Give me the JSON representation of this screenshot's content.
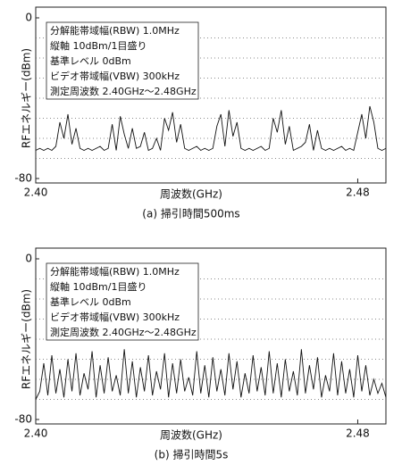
{
  "chart_data": [
    {
      "type": "line",
      "ylabel": "RFエネルギー(dBm)",
      "xlabel": "周波数(GHz)",
      "caption": "(a) 掃引時間500ms",
      "annotations": [
        "分解能帯域幅(RBW) 1.0MHz",
        "縦軸 10dBm/1目盛り",
        "基準レベル 0dBm",
        "ビデオ帯域幅(VBW) 300kHz",
        "測定周波数 2.40GHz〜2.48GHz"
      ],
      "x": [
        2.4,
        2.401,
        2.402,
        2.403,
        2.404,
        2.405,
        2.406,
        2.407,
        2.408,
        2.409,
        2.41,
        2.411,
        2.412,
        2.413,
        2.414,
        2.415,
        2.416,
        2.417,
        2.418,
        2.419,
        2.42,
        2.421,
        2.422,
        2.423,
        2.424,
        2.425,
        2.426,
        2.427,
        2.428,
        2.429,
        2.43,
        2.431,
        2.432,
        2.433,
        2.434,
        2.435,
        2.436,
        2.437,
        2.438,
        2.439,
        2.44,
        2.441,
        2.442,
        2.443,
        2.444,
        2.445,
        2.446,
        2.447,
        2.448,
        2.449,
        2.45,
        2.451,
        2.452,
        2.453,
        2.454,
        2.455,
        2.456,
        2.457,
        2.458,
        2.459,
        2.46,
        2.461,
        2.462,
        2.463,
        2.464,
        2.465,
        2.466,
        2.467,
        2.468,
        2.469,
        2.47,
        2.471,
        2.472,
        2.473,
        2.474,
        2.475,
        2.476,
        2.477,
        2.478,
        2.479,
        2.48,
        2.481,
        2.482,
        2.483,
        2.484,
        2.485,
        2.486,
        2.487
      ],
      "series": [
        {
          "color": "#111111",
          "values": [
            -66,
            -65,
            -66,
            -65,
            -66,
            -64,
            -52,
            -60,
            -48,
            -63,
            -55,
            -65,
            -66,
            -65,
            -66,
            -65,
            -64,
            -66,
            -65,
            -53,
            -66,
            -49,
            -58,
            -65,
            -55,
            -65,
            -64,
            -57,
            -66,
            -65,
            -60,
            -66,
            -50,
            -56,
            -47,
            -62,
            -53,
            -65,
            -66,
            -65,
            -64,
            -66,
            -65,
            -66,
            -65,
            -54,
            -48,
            -64,
            -46,
            -59,
            -52,
            -65,
            -66,
            -65,
            -66,
            -65,
            -64,
            -66,
            -65,
            -50,
            -57,
            -46,
            -63,
            -54,
            -66,
            -65,
            -64,
            -62,
            -53,
            -66,
            -56,
            -65,
            -66,
            -65,
            -66,
            -65,
            -64,
            -66,
            -65,
            -66,
            -57,
            -48,
            -60,
            -44,
            -52,
            -65,
            -66,
            -65
          ]
        }
      ],
      "xlim": [
        2.4,
        2.487
      ],
      "ylim": [
        -80,
        0
      ],
      "xticks": [
        {
          "value": 2.4,
          "label": "2.40"
        },
        2.48
      ],
      "yticks": [
        0,
        -80
      ],
      "ygrid": [
        -10,
        -20,
        -30,
        -40,
        -50,
        -60,
        -70
      ]
    },
    {
      "type": "line",
      "ylabel": "RFエネルギー(dBm)",
      "xlabel": "周波数(GHz)",
      "caption": "(b) 掃引時間5s",
      "annotations": [
        "分解能帯域幅(RBW) 1.0MHz",
        "縦軸 10dBm/1目盛り",
        "基準レベル 0dBm",
        "ビデオ帯域幅(VBW) 300kHz",
        "測定周波数 2.40GHz〜2.48GHz"
      ],
      "x": [
        2.4,
        2.401,
        2.402,
        2.403,
        2.404,
        2.405,
        2.406,
        2.407,
        2.408,
        2.409,
        2.41,
        2.411,
        2.412,
        2.413,
        2.414,
        2.415,
        2.416,
        2.417,
        2.418,
        2.419,
        2.42,
        2.421,
        2.422,
        2.423,
        2.424,
        2.425,
        2.426,
        2.427,
        2.428,
        2.429,
        2.43,
        2.431,
        2.432,
        2.433,
        2.434,
        2.435,
        2.436,
        2.437,
        2.438,
        2.439,
        2.44,
        2.441,
        2.442,
        2.443,
        2.444,
        2.445,
        2.446,
        2.447,
        2.448,
        2.449,
        2.45,
        2.451,
        2.452,
        2.453,
        2.454,
        2.455,
        2.456,
        2.457,
        2.458,
        2.459,
        2.46,
        2.461,
        2.462,
        2.463,
        2.464,
        2.465,
        2.466,
        2.467,
        2.468,
        2.469,
        2.47,
        2.471,
        2.472,
        2.473,
        2.474,
        2.475,
        2.476,
        2.477,
        2.478,
        2.479,
        2.48,
        2.481,
        2.482,
        2.483,
        2.484,
        2.485,
        2.486,
        2.487
      ],
      "series": [
        {
          "color": "#111111",
          "values": [
            -70,
            -66,
            -52,
            -68,
            -48,
            -67,
            -55,
            -69,
            -50,
            -66,
            -47,
            -68,
            -57,
            -65,
            -46,
            -69,
            -53,
            -67,
            -49,
            -66,
            -58,
            -68,
            -45,
            -67,
            -51,
            -69,
            -54,
            -66,
            -48,
            -68,
            -56,
            -65,
            -47,
            -69,
            -52,
            -67,
            -50,
            -66,
            -59,
            -68,
            -46,
            -67,
            -53,
            -69,
            -49,
            -66,
            -55,
            -68,
            -47,
            -65,
            -51,
            -69,
            -57,
            -67,
            -48,
            -66,
            -54,
            -68,
            -46,
            -67,
            -52,
            -69,
            -50,
            -66,
            -56,
            -68,
            -45,
            -67,
            -53,
            -65,
            -49,
            -69,
            -58,
            -66,
            -47,
            -68,
            -51,
            -67,
            -55,
            -69,
            -48,
            -66,
            -53,
            -68,
            -60,
            -67,
            -62,
            -69
          ]
        }
      ],
      "xlim": [
        2.4,
        2.487
      ],
      "ylim": [
        -80,
        0
      ],
      "xticks": [
        {
          "value": 2.4,
          "label": "2.40"
        },
        2.48
      ],
      "yticks": [
        0,
        -80
      ],
      "ygrid": [
        -10,
        -20,
        -30,
        -40,
        -50,
        -60,
        -70
      ]
    }
  ]
}
